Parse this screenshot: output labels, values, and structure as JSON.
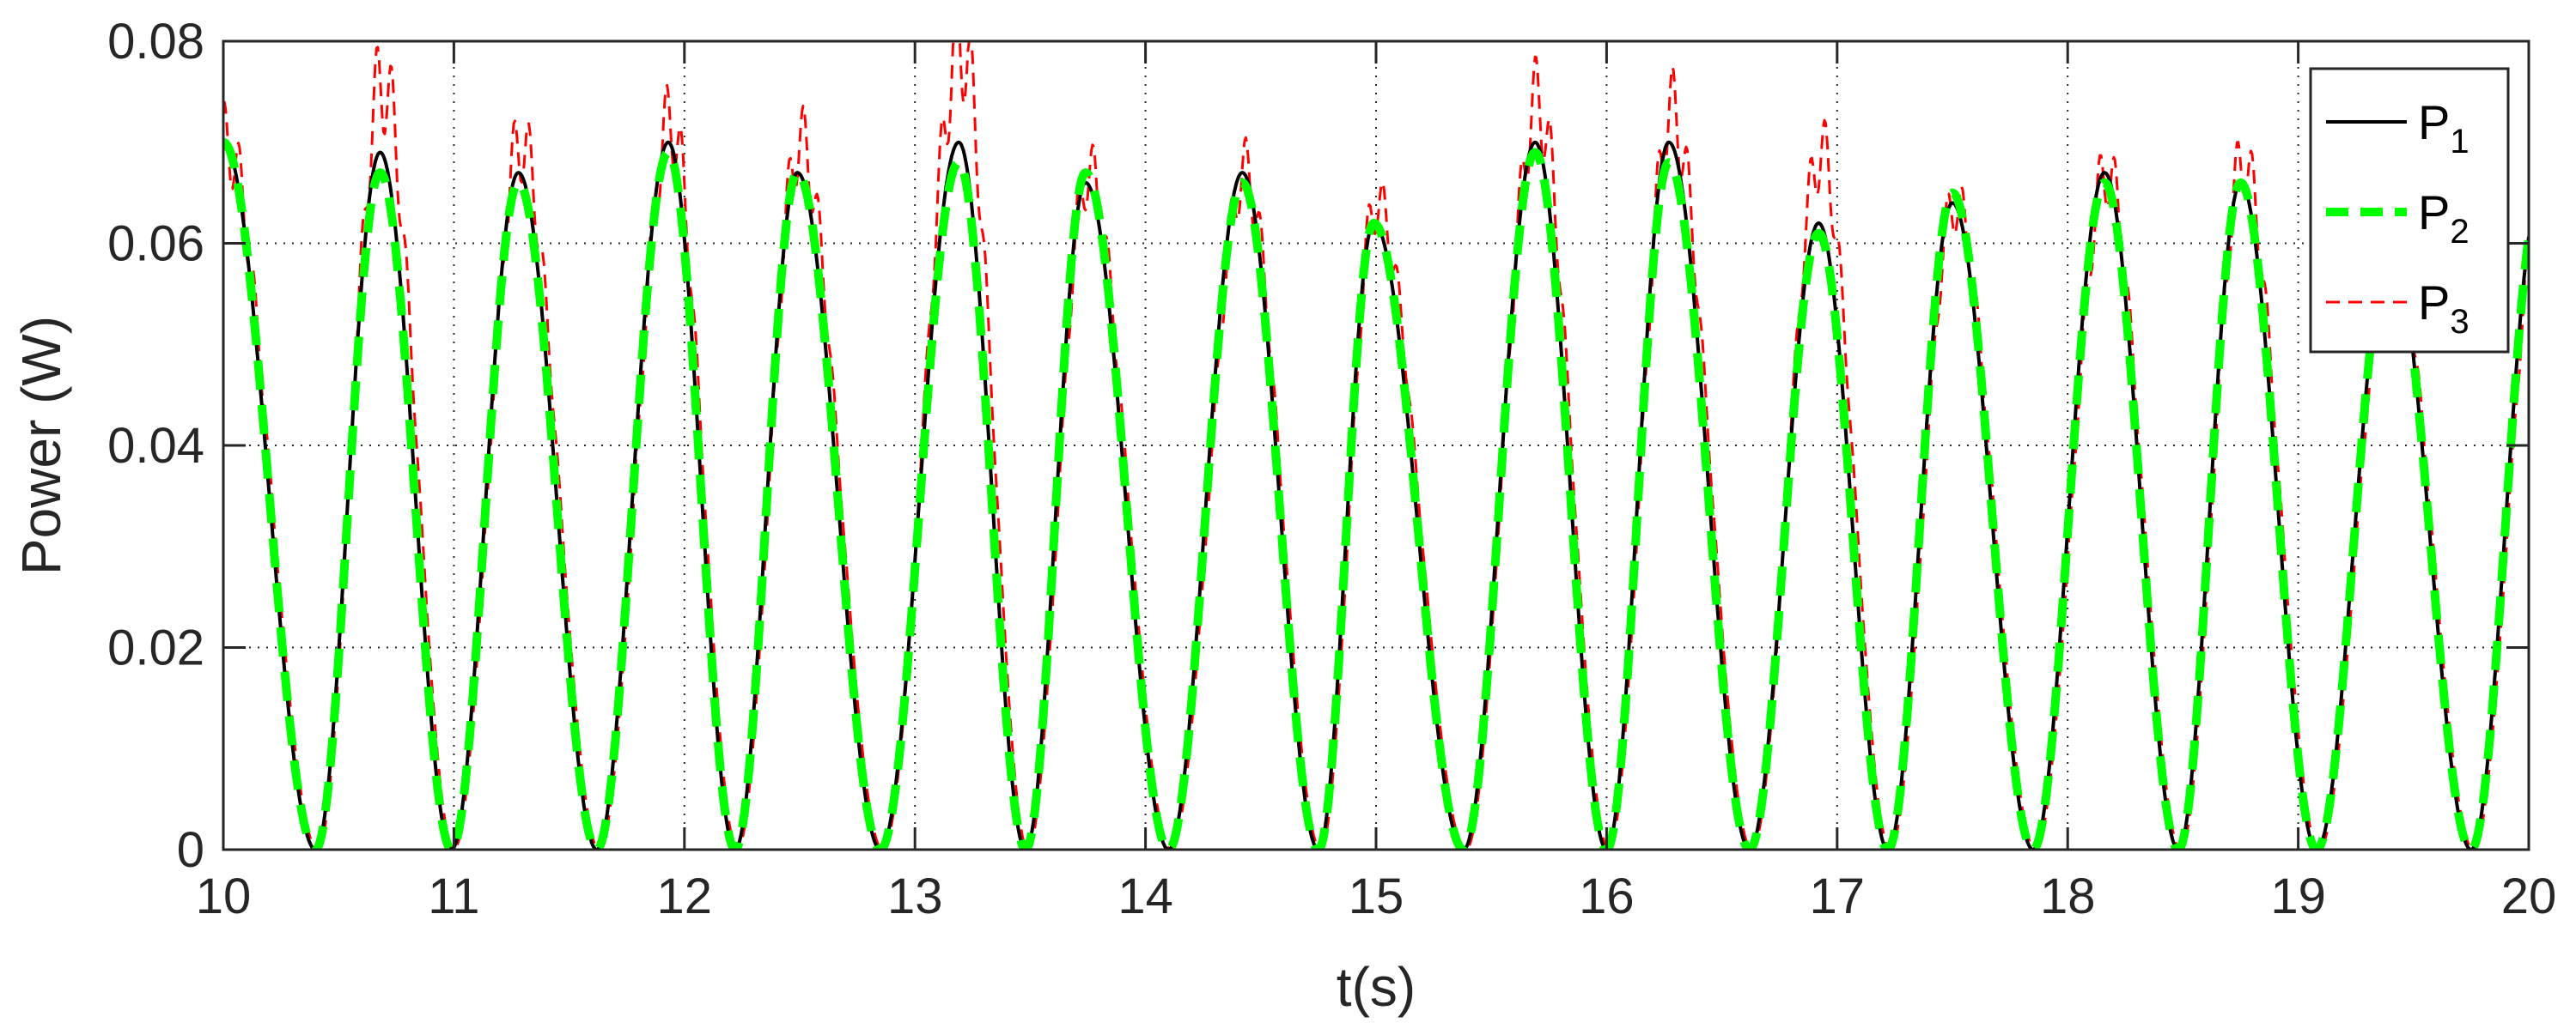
{
  "chart_data": {
    "type": "line",
    "title": "",
    "xlabel": "t(s)",
    "ylabel": "Power (W)",
    "xlim": [
      10,
      20
    ],
    "ylim": [
      0,
      0.08
    ],
    "x_ticks": [
      10,
      11,
      12,
      13,
      14,
      15,
      16,
      17,
      18,
      19,
      20
    ],
    "x_tick_labels": [
      "10",
      "11",
      "12",
      "13",
      "14",
      "15",
      "16",
      "17",
      "18",
      "19",
      "20"
    ],
    "y_ticks": [
      0,
      0.02,
      0.04,
      0.06,
      0.08
    ],
    "y_tick_labels": [
      "0",
      "0.02",
      "0.04",
      "0.06",
      "0.08"
    ],
    "grid": true,
    "legend_position": "top-right",
    "peaks": [
      {
        "t": 10.0,
        "p1": 0.07,
        "p2": 0.07,
        "p3": 0.07
      },
      {
        "t": 10.68,
        "p1": 0.069,
        "p2": 0.067,
        "p3": 0.076
      },
      {
        "t": 11.28,
        "p1": 0.067,
        "p2": 0.066,
        "p3": 0.07
      },
      {
        "t": 11.93,
        "p1": 0.07,
        "p2": 0.069,
        "p3": 0.072
      },
      {
        "t": 12.49,
        "p1": 0.067,
        "p2": 0.067,
        "p3": 0.07
      },
      {
        "t": 13.19,
        "p1": 0.07,
        "p2": 0.068,
        "p3": 0.08
      },
      {
        "t": 13.74,
        "p1": 0.066,
        "p2": 0.067,
        "p3": 0.067
      },
      {
        "t": 14.42,
        "p1": 0.067,
        "p2": 0.066,
        "p3": 0.067
      },
      {
        "t": 14.99,
        "p1": 0.062,
        "p2": 0.062,
        "p3": 0.064
      },
      {
        "t": 15.69,
        "p1": 0.07,
        "p2": 0.069,
        "p3": 0.074
      },
      {
        "t": 16.27,
        "p1": 0.07,
        "p2": 0.068,
        "p3": 0.073
      },
      {
        "t": 16.92,
        "p1": 0.062,
        "p2": 0.061,
        "p3": 0.069
      },
      {
        "t": 17.5,
        "p1": 0.064,
        "p2": 0.065,
        "p3": 0.064
      },
      {
        "t": 18.16,
        "p1": 0.067,
        "p2": 0.066,
        "p3": 0.067
      },
      {
        "t": 18.75,
        "p1": 0.066,
        "p2": 0.066,
        "p3": 0.068
      },
      {
        "t": 19.4,
        "p1": 0.06,
        "p2": 0.06,
        "p3": 0.06
      }
    ],
    "troughs": [
      10.4,
      10.99,
      11.62,
      12.22,
      12.85,
      13.48,
      14.1,
      14.75,
      15.38,
      16.0,
      16.62,
      17.22,
      17.85,
      18.48,
      19.08,
      19.75
    ],
    "series": [
      {
        "name": "P_1",
        "label": "P",
        "subscript": "1",
        "color": "#000000",
        "style": "solid"
      },
      {
        "name": "P_2",
        "label": "P",
        "subscript": "2",
        "color": "#00ff00",
        "style": "dashed-thick"
      },
      {
        "name": "P_3",
        "label": "P",
        "subscript": "3",
        "color": "#ff0000",
        "style": "dashed-thin"
      }
    ]
  }
}
